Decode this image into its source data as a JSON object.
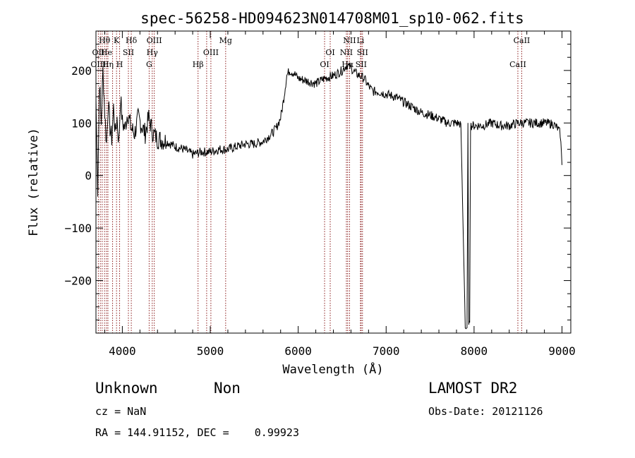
{
  "chart_data": {
    "type": "line",
    "title": "spec-56258-HD094623N014708M01_sp10-062.fits",
    "xlabel": "Wavelength (Å)",
    "ylabel": "Flux (relative)",
    "xlim": [
      3700,
      9100
    ],
    "ylim": [
      -300,
      275
    ],
    "xticks": [
      4000,
      5000,
      6000,
      7000,
      8000,
      9000
    ],
    "yticks": [
      -200,
      -100,
      0,
      100,
      200
    ],
    "grid": false,
    "series": [
      {
        "color": "#000000",
        "x": [
          3700,
          3720,
          3740,
          3760,
          3780,
          3800,
          3820,
          3840,
          3860,
          3880,
          3900,
          3920,
          3940,
          3960,
          3980,
          4000,
          4030,
          4060,
          4100,
          4140,
          4180,
          4220,
          4260,
          4300,
          4350,
          4400,
          4500,
          4600,
          4700,
          4800,
          4900,
          5000,
          5100,
          5200,
          5300,
          5400,
          5500,
          5600,
          5700,
          5750,
          5800,
          5830,
          5870,
          5900,
          5950,
          6000,
          6100,
          6200,
          6300,
          6400,
          6450,
          6500,
          6550,
          6600,
          6650,
          6700,
          6750,
          6800,
          6850,
          6900,
          7000,
          7100,
          7200,
          7300,
          7400,
          7500,
          7600,
          7700,
          7800,
          7850,
          7900,
          7920,
          7930,
          7940,
          7950,
          7960,
          8000,
          8100,
          8200,
          8300,
          8400,
          8500,
          8600,
          8700,
          8800,
          8900,
          8950,
          8980,
          9000
        ],
        "y": [
          150,
          -40,
          180,
          100,
          200,
          120,
          60,
          140,
          90,
          70,
          130,
          80,
          110,
          60,
          150,
          100,
          90,
          120,
          90,
          80,
          110,
          95,
          80,
          110,
          80,
          70,
          65,
          55,
          50,
          40,
          45,
          45,
          50,
          50,
          55,
          60,
          60,
          65,
          80,
          90,
          110,
          140,
          190,
          200,
          195,
          185,
          180,
          175,
          185,
          190,
          195,
          200,
          210,
          205,
          195,
          190,
          185,
          170,
          160,
          160,
          155,
          150,
          140,
          130,
          120,
          115,
          108,
          100,
          100,
          98,
          -290,
          -290,
          100,
          -290,
          -280,
          95,
          95,
          95,
          100,
          95,
          95,
          100,
          100,
          100,
          100,
          98,
          90,
          80,
          20
        ]
      }
    ],
    "line_labels": [
      {
        "label": "Hθ",
        "x": 3798,
        "row": 0
      },
      {
        "label": "OII",
        "x": 3727,
        "row": 1
      },
      {
        "label": "OIII",
        "x": 3727,
        "row": 2
      },
      {
        "label": "He",
        "x": 3820,
        "row": 1
      },
      {
        "label": "Hη",
        "x": 3836,
        "row": 2
      },
      {
        "label": "K",
        "x": 3934,
        "row": 0
      },
      {
        "label": "SII",
        "x": 4069,
        "row": 1
      },
      {
        "label": "H",
        "x": 3969,
        "row": 2
      },
      {
        "label": "Hδ",
        "x": 4102,
        "row": 0
      },
      {
        "label": "OIII",
        "x": 4363,
        "row": 0
      },
      {
        "label": "Hγ",
        "x": 4340,
        "row": 1
      },
      {
        "label": "G",
        "x": 4305,
        "row": 2
      },
      {
        "label": "Mg",
        "x": 5175,
        "row": 0
      },
      {
        "label": "OIII",
        "x": 5007,
        "row": 1
      },
      {
        "label": "Hβ",
        "x": 4861,
        "row": 2
      },
      {
        "label": "OI",
        "x": 6364,
        "row": 1
      },
      {
        "label": "OI",
        "x": 6300,
        "row": 2
      },
      {
        "label": "NII",
        "x": 6584,
        "row": 0
      },
      {
        "label": "Li",
        "x": 6708,
        "row": 0
      },
      {
        "label": "NII",
        "x": 6548,
        "row": 1
      },
      {
        "label": "SII",
        "x": 6731,
        "row": 1
      },
      {
        "label": "Hα",
        "x": 6563,
        "row": 2
      },
      {
        "label": "SII",
        "x": 6716,
        "row": 2
      },
      {
        "label": "CaII",
        "x": 8542,
        "row": 0
      },
      {
        "label": "CaII",
        "x": 8498,
        "row": 2
      }
    ],
    "line_positions": [
      3727,
      3750,
      3771,
      3798,
      3820,
      3836,
      3889,
      3934,
      3969,
      4069,
      4102,
      4305,
      4340,
      4363,
      4861,
      4959,
      5007,
      5175,
      6300,
      6364,
      6548,
      6563,
      6584,
      6708,
      6716,
      6731,
      8498,
      8542
    ]
  },
  "footer": {
    "object_class": "Unknown",
    "subclass": "Non",
    "survey": "LAMOST DR2",
    "cz": "cz = NaN",
    "obs_date": "Obs-Date: 20121126",
    "coords": "RA = 144.91152, DEC =    0.99923"
  },
  "colors": {
    "line_marker": "#8b1a1a",
    "spectrum": "#000000"
  }
}
